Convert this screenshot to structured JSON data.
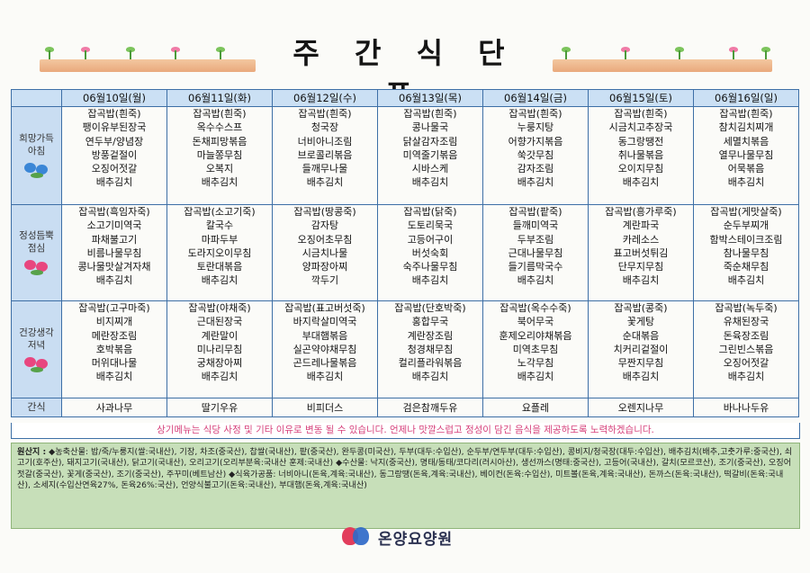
{
  "title": "주 간 식 단 표",
  "days": [
    "06월10일(월)",
    "06월11일(화)",
    "06월12일(수)",
    "06월13일(목)",
    "06월14일(금)",
    "06월15일(토)",
    "06월16일(일)"
  ],
  "meals": {
    "breakfast": {
      "label": "희망가득 아침",
      "days": [
        [
          "잡곡밥(흰죽)",
          "팽이유부된장국",
          "연두부/양념장",
          "방풍겉절이",
          "오징어젓갈",
          "배추김치"
        ],
        [
          "잡곡밥(흰죽)",
          "옥수수스프",
          "돈채피망볶음",
          "마늘쫑무침",
          "오복지",
          "배추김치"
        ],
        [
          "잡곡밥(흰죽)",
          "청국장",
          "너비아니조림",
          "브로콜리볶음",
          "들깨무나물",
          "배추김치"
        ],
        [
          "잡곡밥(흰죽)",
          "콩나물국",
          "닭살감자조림",
          "미역줄기볶음",
          "시바스케",
          "배추김치"
        ],
        [
          "잡곡밥(흰죽)",
          "누룽지탕",
          "어향가지볶음",
          "쑥갓무침",
          "감자조림",
          "배추김치"
        ],
        [
          "잡곡밥(흰죽)",
          "시금치고추장국",
          "동그랑땡전",
          "취나물볶음",
          "오이지무침",
          "배추김치"
        ],
        [
          "잡곡밥(흰죽)",
          "참치김치찌개",
          "세멸치볶음",
          "열무나물무침",
          "어묵볶음",
          "배추김치"
        ]
      ]
    },
    "lunch": {
      "label": "정성듬뿍 점심",
      "days": [
        [
          "잡곡밥(흑임자죽)",
          "소고기미역국",
          "파채불고기",
          "비름나물무침",
          "콩나물맛살겨자채",
          "배추김치"
        ],
        [
          "잡곡밥(소고기죽)",
          "칼국수",
          "마파두부",
          "도라지오이무침",
          "토란대볶음",
          "배추김치"
        ],
        [
          "잡곡밥(땅콩죽)",
          "감자탕",
          "오징어초무침",
          "시금치나물",
          "양파장아찌",
          "깍두기"
        ],
        [
          "잡곡밥(닭죽)",
          "도토리묵국",
          "고등어구이",
          "버섯숙회",
          "숙주나물무침",
          "배추김치"
        ],
        [
          "잡곡밥(팥죽)",
          "들깨미역국",
          "두부조림",
          "근대나물무침",
          "들기름막국수",
          "배추김치"
        ],
        [
          "잡곡밥(흥가루죽)",
          "계란파국",
          "카레소스",
          "표고버섯튀김",
          "단무지무침",
          "배추김치"
        ],
        [
          "잡곡밥(게맛살죽)",
          "순두부찌개",
          "함박스테이크조림",
          "참나물무침",
          "죽순채무침",
          "배추김치"
        ]
      ]
    },
    "dinner": {
      "label": "건강생각 저녁",
      "days": [
        [
          "잡곡밥(고구마죽)",
          "비지찌개",
          "메란장조림",
          "호박볶음",
          "머위대나물",
          "배추김치"
        ],
        [
          "잡곡밥(야채죽)",
          "근대된장국",
          "계란말이",
          "미나리무침",
          "궁채장아찌",
          "배추김치"
        ],
        [
          "잡곡밥(표고버섯죽)",
          "바지락살미역국",
          "부대햄볶음",
          "실곤약야채무침",
          "곤드레나물볶음",
          "배추김치"
        ],
        [
          "잡곡밥(단호박죽)",
          "홍합무국",
          "계란장조림",
          "청경채무침",
          "컬리플라워볶음",
          "배추김치"
        ],
        [
          "잡곡밥(옥수수죽)",
          "북어무국",
          "훈제오리야채볶음",
          "미역초무침",
          "노각무침",
          "배추김치"
        ],
        [
          "잡곡밥(콩죽)",
          "꽃게탕",
          "순대볶음",
          "치커리겉절이",
          "무짠지무침",
          "배추김치"
        ],
        [
          "잡곡밥(녹두죽)",
          "유채된장국",
          "돈육장조림",
          "그린빈스볶음",
          "오징어젓갈",
          "배추김치"
        ]
      ]
    },
    "snack": {
      "label": "간식",
      "days": [
        "사과나무",
        "딸기우유",
        "비피더스",
        "검은참깨두유",
        "요플레",
        "오렌지나무",
        "바나나두유"
      ]
    }
  },
  "notice": "상기메뉴는 식당 사정 및 기타 이유로 변동 될 수 있습니다. 언제나 맛깔스럽고 정성이 담긴 음식을 제공하도록 노력하겠습니다.",
  "origin": {
    "heading": "원산지 :",
    "text": "◆농축산물: 밥/죽/누룽지(쌀:국내산), 기장, 차조(중국산), 찹쌀(국내산), 팥(중국산), 완두콩(미국산), 두부(대두:수입산), 순두부/연두부(대두:수입산), 콩비지/청국장(대두:수입산), 배추김치(배추,고춧가루:중국산), 쇠고기(호주산), 돼지고기(국내산), 닭고기(국내산), 오리고기(오리부분육:국내산 훈제:국내산)    ◆수산물: 낙지(중국산), 명태/동태/코다리(러시아산), 생선까스(명태:중국산), 고등어(국내산), 갈치(모르코산), 조기(중국산), 오징어젓갈(중국산), 꽃게(중국산), 조기(중국산), 주꾸미(베트남산)  ◆식육가공품: 너비아니(돈육,계육:국내산), 동그랑땡(돈육,계육:국내산), 베이컨(돈육:수입산), 미트볼(돈육,계육:국내산), 돈까스(돈육:국내산), 떡갈비(돈육:국내산), 소세지(수입산연육27%, 돈육26%:국산), 언양식불고기(돈육:국내산), 부대햄(돈육,계육:국내산)"
  },
  "brand": "온양요양원"
}
